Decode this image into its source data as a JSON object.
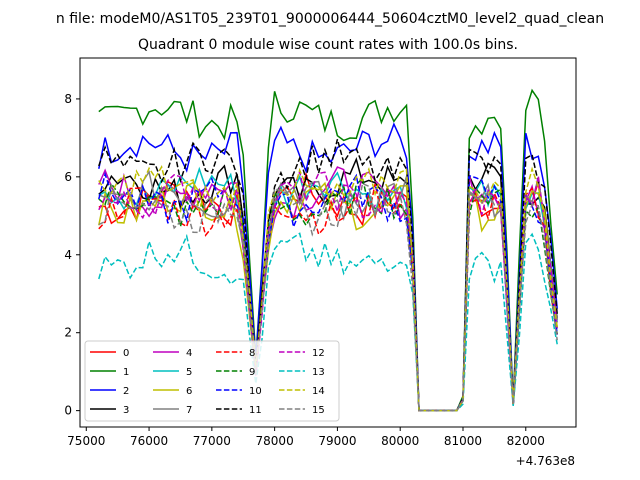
{
  "chart_data": {
    "type": "line",
    "suptitle": "n file: modeM0/AS1T05_239T01_9000006444_50604cztM0_level2_quad_clean",
    "title": "Quadrant 0 module wise count rates with 100.0s bins.",
    "xlabel": "",
    "ylabel": "",
    "x_offset_label": "+4.763e8",
    "xlim": [
      74900,
      82800
    ],
    "ylim": [
      -0.42,
      9.05
    ],
    "xticks": [
      75000,
      76000,
      77000,
      78000,
      79000,
      80000,
      81000,
      82000
    ],
    "xtick_labels": [
      "75000",
      "76000",
      "77000",
      "78000",
      "79000",
      "80000",
      "81000",
      "82000"
    ],
    "yticks": [
      0,
      2,
      4,
      6,
      8
    ],
    "ytick_labels": [
      "0",
      "2",
      "4",
      "6",
      "8"
    ],
    "legend_location": "lower-left",
    "series": [
      {
        "name": "0",
        "color": "#ff0000",
        "dash": "solid",
        "base": 5.4
      },
      {
        "name": "1",
        "color": "#008000",
        "dash": "solid",
        "base": 7.6
      },
      {
        "name": "2",
        "color": "#0000ff",
        "dash": "solid",
        "base": 6.7
      },
      {
        "name": "3",
        "color": "#000000",
        "dash": "solid",
        "base": 5.8
      },
      {
        "name": "4",
        "color": "#bf00bf",
        "dash": "solid",
        "base": 5.6
      },
      {
        "name": "5",
        "color": "#00bfbf",
        "dash": "solid",
        "base": 5.7
      },
      {
        "name": "6",
        "color": "#bfbf00",
        "dash": "solid",
        "base": 5.3
      },
      {
        "name": "7",
        "color": "#808080",
        "dash": "solid",
        "base": 5.5
      },
      {
        "name": "8",
        "color": "#ff0000",
        "dash": "dashed",
        "base": 5.2
      },
      {
        "name": "9",
        "color": "#008000",
        "dash": "dashed",
        "base": 5.3
      },
      {
        "name": "10",
        "color": "#0000ff",
        "dash": "dashed",
        "base": 5.4
      },
      {
        "name": "11",
        "color": "#000000",
        "dash": "dashed",
        "base": 6.3
      },
      {
        "name": "12",
        "color": "#bf00bf",
        "dash": "dashed",
        "base": 5.5
      },
      {
        "name": "13",
        "color": "#00bfbf",
        "dash": "dashed",
        "base": 3.9
      },
      {
        "name": "14",
        "color": "#bfbf00",
        "dash": "dashed",
        "base": 5.7
      },
      {
        "name": "15",
        "color": "#808080",
        "dash": "dashed",
        "base": 5.2
      }
    ]
  }
}
